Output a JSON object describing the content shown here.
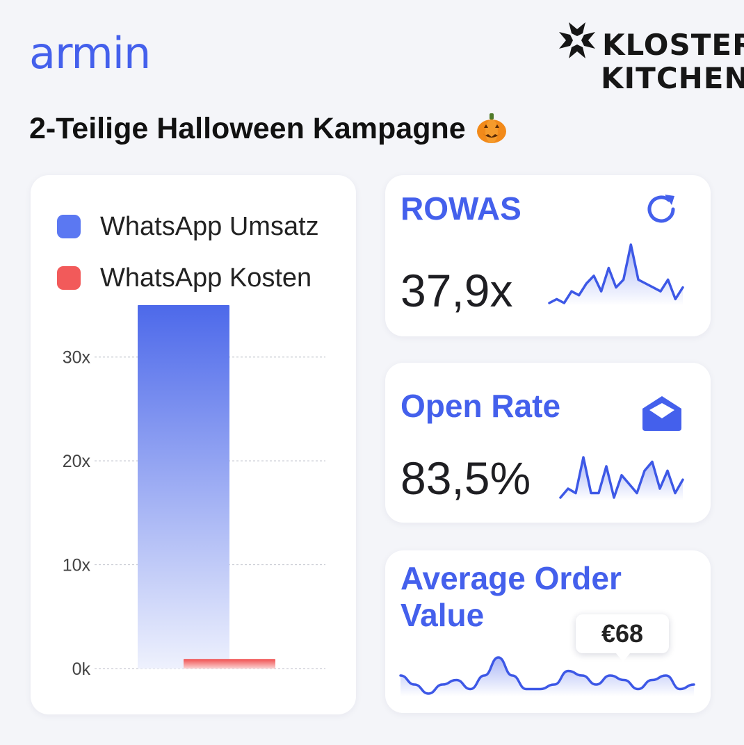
{
  "brand": {
    "armin": "armin",
    "partner_line1": "KLOSTER",
    "partner_line2": "KITCHEN"
  },
  "title": "2-Teilige Halloween Kampagne",
  "title_emoji": "pumpkin-icon",
  "colors": {
    "accent": "#4460ec",
    "umsatz": "#5b78f2",
    "kosten": "#f25a5a"
  },
  "chart_data": {
    "type": "bar",
    "series": [
      {
        "name": "WhatsApp Umsatz",
        "value": 35,
        "color": "#5b78f2"
      },
      {
        "name": "WhatsApp Kosten",
        "value": 0.92,
        "color": "#f25a5a"
      }
    ],
    "ylim": [
      0,
      35
    ],
    "yticks": [
      0,
      10,
      20,
      30
    ],
    "ytick_labels": [
      "0k",
      "10x",
      "20x",
      "30x"
    ],
    "grid": true,
    "legend_position": "top-left"
  },
  "kpis": {
    "rowas": {
      "title": "ROWAS",
      "value": "37,9x",
      "icon": "refresh-icon",
      "trend": [
        3,
        4,
        3,
        6,
        5,
        8,
        10,
        6,
        12,
        7,
        9,
        18,
        9,
        8,
        7,
        6,
        9,
        4,
        7
      ]
    },
    "open_rate": {
      "title": "Open Rate",
      "value": "83,5%",
      "icon": "envelope-open-icon",
      "trend": [
        4,
        6,
        5,
        13,
        5,
        5,
        11,
        4,
        9,
        7,
        5,
        10,
        12,
        6,
        10,
        5,
        8
      ]
    },
    "aov": {
      "title_line1": "Average Order",
      "title_line2": "Value",
      "tooltip": "€68",
      "trend": [
        6,
        4,
        2,
        4,
        5,
        3,
        6,
        10,
        6,
        3,
        3,
        4,
        7,
        6,
        4,
        6,
        5,
        3,
        5,
        6,
        3,
        4
      ]
    }
  }
}
